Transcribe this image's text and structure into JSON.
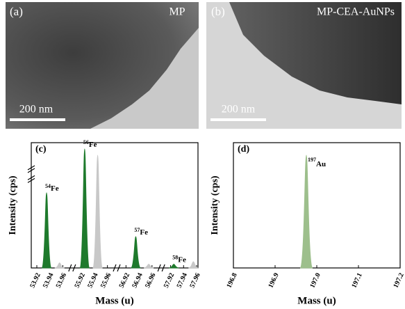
{
  "images": [
    {
      "panel": "(a)",
      "caption": "MP",
      "scale": "200 nm"
    },
    {
      "panel": "(b)",
      "caption": "MP-CEA-AuNPs",
      "scale": "200 nm"
    }
  ],
  "chart_data": [
    {
      "type": "peaks",
      "panel": "(c)",
      "y_label": "Intensity (cps)",
      "x_label": "Mass (u)",
      "xticks": [
        53.92,
        53.94,
        53.96,
        55.92,
        55.94,
        55.96,
        56.92,
        56.94,
        56.96,
        57.92,
        57.94,
        57.96
      ],
      "ylim": [
        0,
        100
      ],
      "series": [
        {
          "color": "#1e7a2c",
          "x": [
            53.935,
            55.925,
            56.935,
            57.925
          ],
          "values": [
            60,
            95,
            25,
            3
          ]
        },
        {
          "color": "#c8c8c8",
          "x": [
            53.955,
            55.945,
            56.955,
            57.955
          ],
          "values": [
            4,
            90,
            3,
            5
          ]
        }
      ],
      "annotations": [
        {
          "mass": "54",
          "element": "Fe"
        },
        {
          "mass": "56",
          "element": "Fe"
        },
        {
          "mass": "57",
          "element": "Fe"
        },
        {
          "mass": "58",
          "element": "Fe"
        }
      ]
    },
    {
      "type": "peaks",
      "panel": "(d)",
      "y_label": "Intensity (cps)",
      "x_label": "Mass (u)",
      "xlim": [
        196.8,
        197.2
      ],
      "xticks": [
        196.8,
        196.9,
        {
          "value": 197.0,
          "label": "197.0"
        },
        197.1,
        197.2
      ],
      "ylim": [
        0,
        100
      ],
      "series": [
        {
          "color": "#9dbf8c",
          "x": [
            196.975
          ],
          "values": [
            90
          ]
        }
      ],
      "annotations": [
        {
          "mass": "197",
          "element": "Au"
        }
      ]
    }
  ]
}
